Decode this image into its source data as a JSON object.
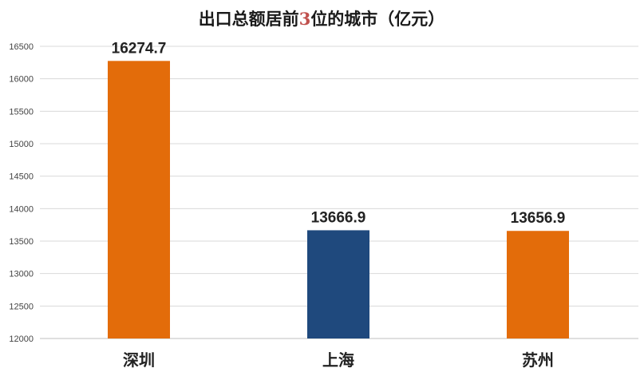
{
  "chart_data": {
    "type": "bar",
    "title": {
      "pre": "出口总额居前",
      "num": "3",
      "post": "位的城市（亿元）"
    },
    "categories": [
      "深圳",
      "上海",
      "苏州"
    ],
    "values": [
      16274.7,
      13666.9,
      13656.9
    ],
    "data_labels": [
      "16274.7",
      "13666.9",
      "13656.9"
    ],
    "bar_colors": [
      "#E36C0A",
      "#1F497D",
      "#E36C0A"
    ],
    "title_number_color": "#C0504D",
    "ylim": [
      12000,
      16500
    ],
    "yticks": [
      12000,
      12500,
      13000,
      13500,
      14000,
      14500,
      15000,
      15500,
      16000,
      16500
    ],
    "grid": true,
    "legend": "none",
    "xlabel": "",
    "ylabel": ""
  }
}
